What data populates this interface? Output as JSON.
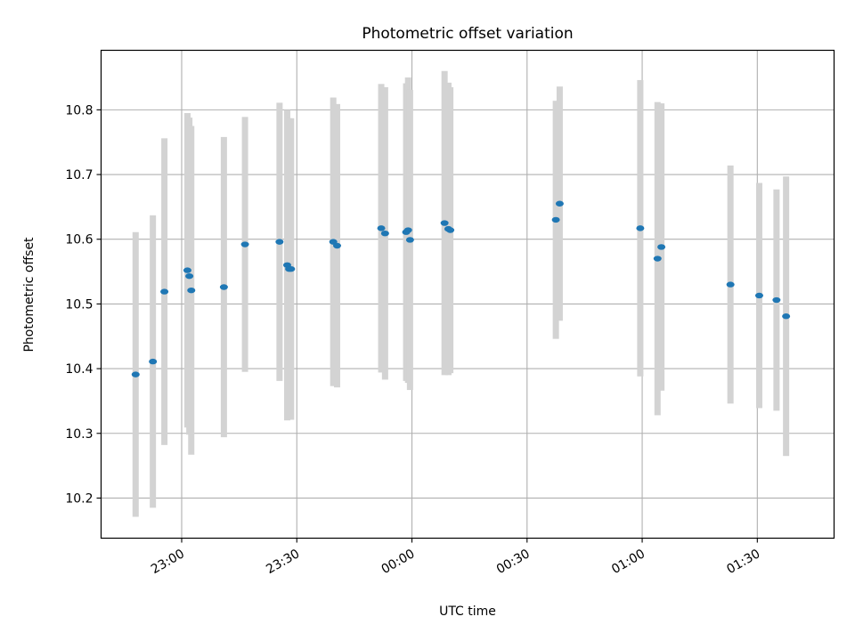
{
  "chart_data": {
    "type": "scatter",
    "title": "Photometric offset variation",
    "xlabel": "UTC time",
    "ylabel": "Photometric offset",
    "xlim": [
      "22:39:00",
      "01:50:00"
    ],
    "ylim": [
      10.138,
      10.892
    ],
    "grid": true,
    "x_ticks": [
      {
        "value": "23:00",
        "label": "23:00"
      },
      {
        "value": "23:30",
        "label": "23:30"
      },
      {
        "value": "00:00",
        "label": "00:00"
      },
      {
        "value": "00:30",
        "label": "00:30"
      },
      {
        "value": "01:00",
        "label": "01:00"
      },
      {
        "value": "01:30",
        "label": "01:30"
      }
    ],
    "y_ticks": [
      10.2,
      10.3,
      10.4,
      10.5,
      10.6,
      10.7,
      10.8
    ],
    "colors": {
      "point": "#1f77b4",
      "errorbar": "#d3d3d3",
      "grid": "#b0b0b0"
    },
    "points": [
      {
        "t": "22:48:00",
        "y": 10.391,
        "err": 0.22
      },
      {
        "t": "22:52:30",
        "y": 10.411,
        "err": 0.226
      },
      {
        "t": "22:55:30",
        "y": 10.519,
        "err": 0.237
      },
      {
        "t": "23:01:30",
        "y": 10.552,
        "err": 0.243
      },
      {
        "t": "23:02:00",
        "y": 10.543,
        "err": 0.245
      },
      {
        "t": "23:02:30",
        "y": 10.521,
        "err": 0.254
      },
      {
        "t": "23:11:00",
        "y": 10.526,
        "err": 0.232
      },
      {
        "t": "23:16:30",
        "y": 10.592,
        "err": 0.197
      },
      {
        "t": "23:25:30",
        "y": 10.596,
        "err": 0.215
      },
      {
        "t": "23:27:30",
        "y": 10.56,
        "err": 0.24
      },
      {
        "t": "23:28:00",
        "y": 10.554,
        "err": 0.233
      },
      {
        "t": "23:28:30",
        "y": 10.554,
        "err": 0.233
      },
      {
        "t": "23:39:30",
        "y": 10.596,
        "err": 0.223
      },
      {
        "t": "23:40:30",
        "y": 10.59,
        "err": 0.219
      },
      {
        "t": "23:52:00",
        "y": 10.617,
        "err": 0.223
      },
      {
        "t": "23:53:00",
        "y": 10.609,
        "err": 0.226
      },
      {
        "t": "23:58:30",
        "y": 10.611,
        "err": 0.23
      },
      {
        "t": "23:59:00",
        "y": 10.614,
        "err": 0.236
      },
      {
        "t": "23:59:30",
        "y": 10.599,
        "err": 0.232
      },
      {
        "t": "00:08:30",
        "y": 10.625,
        "err": 0.235
      },
      {
        "t": "00:09:30",
        "y": 10.616,
        "err": 0.226
      },
      {
        "t": "00:10:00",
        "y": 10.614,
        "err": 0.221
      },
      {
        "t": "00:37:30",
        "y": 10.63,
        "err": 0.184
      },
      {
        "t": "00:38:30",
        "y": 10.655,
        "err": 0.181
      },
      {
        "t": "00:59:30",
        "y": 10.617,
        "err": 0.229
      },
      {
        "t": "01:04:00",
        "y": 10.57,
        "err": 0.242
      },
      {
        "t": "01:05:00",
        "y": 10.588,
        "err": 0.222
      },
      {
        "t": "01:23:00",
        "y": 10.53,
        "err": 0.184
      },
      {
        "t": "01:30:30",
        "y": 10.513,
        "err": 0.174
      },
      {
        "t": "01:35:00",
        "y": 10.506,
        "err": 0.171
      },
      {
        "t": "01:37:30",
        "y": 10.481,
        "err": 0.216
      }
    ]
  }
}
